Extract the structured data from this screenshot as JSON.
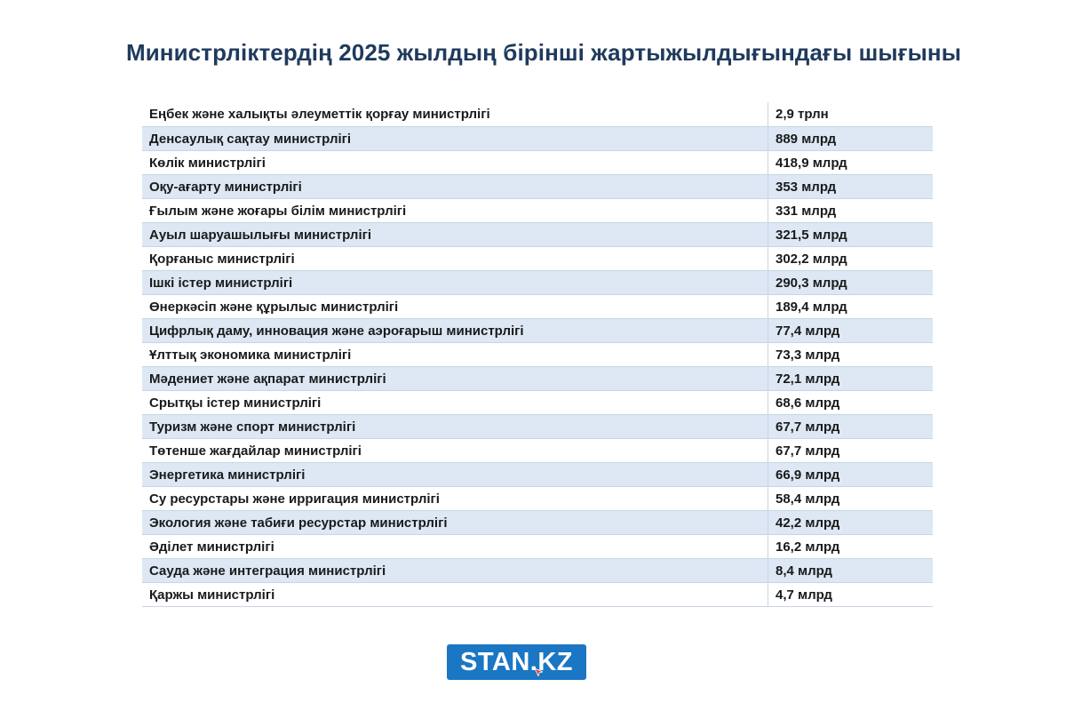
{
  "title": "Министрліктердің 2025 жылдың бірінші жартыжылдығындағы шығыны",
  "rows": [
    {
      "name": "Еңбек және халықты әлеуметтік қорғау министрлігі",
      "value": "2,9 трлн"
    },
    {
      "name": "Денсаулық сақтау министрлігі",
      "value": "889 млрд"
    },
    {
      "name": "Көлік министрлігі",
      "value": "418,9 млрд"
    },
    {
      "name": "Оқу-ағарту министрлігі",
      "value": "353 млрд"
    },
    {
      "name": "Ғылым және жоғары білім министрлігі",
      "value": "331 млрд"
    },
    {
      "name": "Ауыл шаруашылығы министрлігі",
      "value": "321,5 млрд"
    },
    {
      "name": "Қорғаныс министрлігі",
      "value": "302,2 млрд"
    },
    {
      "name": "Ішкі істер министрлігі",
      "value": "290,3 млрд"
    },
    {
      "name": "Өнеркәсіп және құрылыс министрлігі",
      "value": "189,4 млрд"
    },
    {
      "name": "Цифрлық даму, инновация және аэроғарыш министрлігі",
      "value": "77,4 млрд"
    },
    {
      "name": "Ұлттық экономика министрлігі",
      "value": "73,3 млрд"
    },
    {
      "name": "Мәдениет және ақпарат министрлігі",
      "value": "72,1 млрд"
    },
    {
      "name": "Срытқы істер министрлігі",
      "value": "68,6 млрд"
    },
    {
      "name": "Туризм және спорт министрлігі",
      "value": "67,7 млрд"
    },
    {
      "name": "Төтенше жағдайлар министрлігі",
      "value": "67,7 млрд"
    },
    {
      "name": "Энергетика министрлігі",
      "value": "66,9 млрд"
    },
    {
      "name": "Су ресурстары және ирригация министрлігі",
      "value": "58,4 млрд"
    },
    {
      "name": "Экология және табиғи ресурстар министрлігі",
      "value": "42,2 млрд"
    },
    {
      "name": "Әділет министрлігі",
      "value": "16,2 млрд"
    },
    {
      "name": "Сауда және интеграция министрлігі",
      "value": "8,4 млрд"
    },
    {
      "name": "Қаржы министрлігі",
      "value": "4,7 млрд"
    }
  ],
  "logo": {
    "text": "STAN.KZ",
    "background": "#1b76c4",
    "accent": "#e8403a"
  },
  "colors": {
    "title": "#1f3a5c",
    "row_alt": "#dde8f4",
    "border": "#c7d5e6"
  }
}
